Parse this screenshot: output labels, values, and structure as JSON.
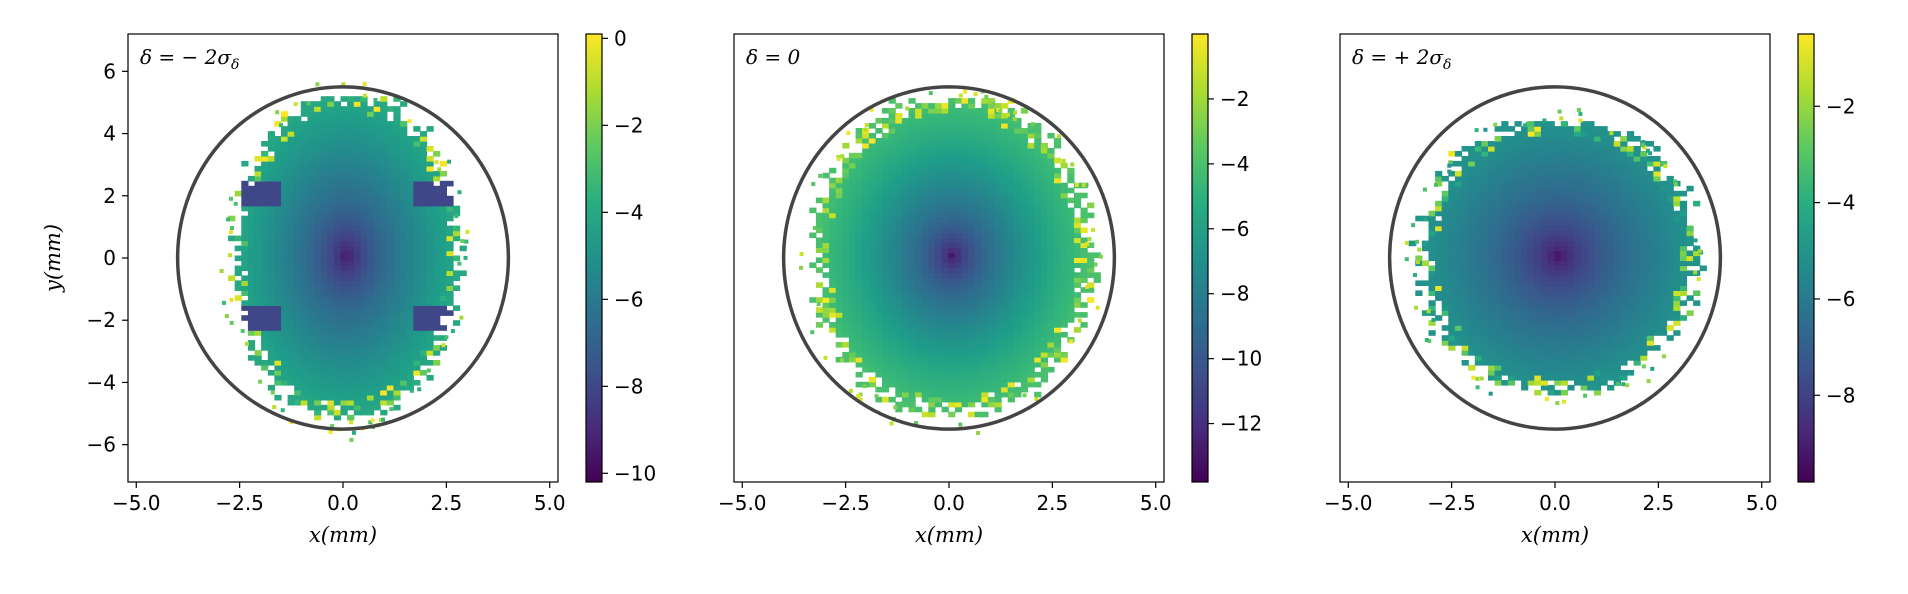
{
  "chart_data": [
    {
      "type": "heatmap",
      "title": "δ = −2σ_δ",
      "title_parts": {
        "main": "δ = − 2σ",
        "sub": "δ"
      },
      "xlabel": "x(mm)",
      "ylabel": "y(mm)",
      "xlim": [
        -5.2,
        5.2
      ],
      "ylim": [
        -7.2,
        7.2
      ],
      "x_ticks": [
        -5.0,
        -2.5,
        0.0,
        2.5,
        5.0
      ],
      "x_tick_labels": [
        "−5.0",
        "−2.5",
        "0.0",
        "2.5",
        "5.0"
      ],
      "y_ticks": [
        6,
        4,
        2,
        0,
        -2,
        -4,
        -6
      ],
      "y_tick_labels": [
        "6",
        "4",
        "2",
        "0",
        "−2",
        "−4",
        "−6"
      ],
      "aperture_ellipse": {
        "semi_axis_x": 4.0,
        "semi_axis_y": 5.5
      },
      "distribution": {
        "half_width_x": 2.7,
        "half_height_y": 5.2,
        "center_value": -10,
        "edge_value": -4,
        "side_lobes": true
      },
      "colorbar": {
        "colormap": "viridis",
        "range": [
          -10.2,
          0.1
        ],
        "ticks": [
          0,
          -2,
          -4,
          -6,
          -8,
          -10
        ],
        "tick_labels": [
          "0",
          "−2",
          "−4",
          "−6",
          "−8",
          "−10"
        ]
      }
    },
    {
      "type": "heatmap",
      "title": "δ = 0",
      "title_parts": {
        "main": "δ = 0",
        "sub": ""
      },
      "xlabel": "x(mm)",
      "ylabel": "",
      "xlim": [
        -5.2,
        5.2
      ],
      "ylim": [
        -7.2,
        7.2
      ],
      "x_ticks": [
        -5.0,
        -2.5,
        0.0,
        2.5,
        5.0
      ],
      "x_tick_labels": [
        "−5.0",
        "−2.5",
        "0.0",
        "2.5",
        "5.0"
      ],
      "y_ticks": [],
      "y_tick_labels": [],
      "aperture_ellipse": {
        "semi_axis_x": 4.0,
        "semi_axis_y": 5.5
      },
      "distribution": {
        "half_width_x": 3.3,
        "half_height_y": 5.1,
        "center_value": -13.5,
        "edge_value": -4,
        "side_lobes": false
      },
      "colorbar": {
        "colormap": "viridis",
        "range": [
          -13.8,
          0.0
        ],
        "ticks": [
          -2,
          -4,
          -6,
          -8,
          -10,
          -12
        ],
        "tick_labels": [
          "−2",
          "−4",
          "−6",
          "−8",
          "−10",
          "−12"
        ]
      }
    },
    {
      "type": "heatmap",
      "title": "δ = +2σ_δ",
      "title_parts": {
        "main": "δ = + 2σ",
        "sub": "δ"
      },
      "xlabel": "x(mm)",
      "ylabel": "",
      "xlim": [
        -5.2,
        5.2
      ],
      "ylim": [
        -7.2,
        7.2
      ],
      "x_ticks": [
        -5.0,
        -2.5,
        0.0,
        2.5,
        5.0
      ],
      "x_tick_labels": [
        "−5.0",
        "−2.5",
        "0.0",
        "2.5",
        "5.0"
      ],
      "y_ticks": [],
      "y_tick_labels": [],
      "aperture_ellipse": {
        "semi_axis_x": 4.0,
        "semi_axis_y": 5.5
      },
      "distribution": {
        "half_width_x": 3.3,
        "half_height_y": 4.4,
        "center_value": -9.7,
        "edge_value": -5,
        "side_lobes": false
      },
      "colorbar": {
        "colormap": "viridis",
        "range": [
          -9.8,
          -0.5
        ],
        "ticks": [
          -2,
          -4,
          -6,
          -8
        ],
        "tick_labels": [
          "−2",
          "−4",
          "−6",
          "−8"
        ]
      }
    }
  ]
}
